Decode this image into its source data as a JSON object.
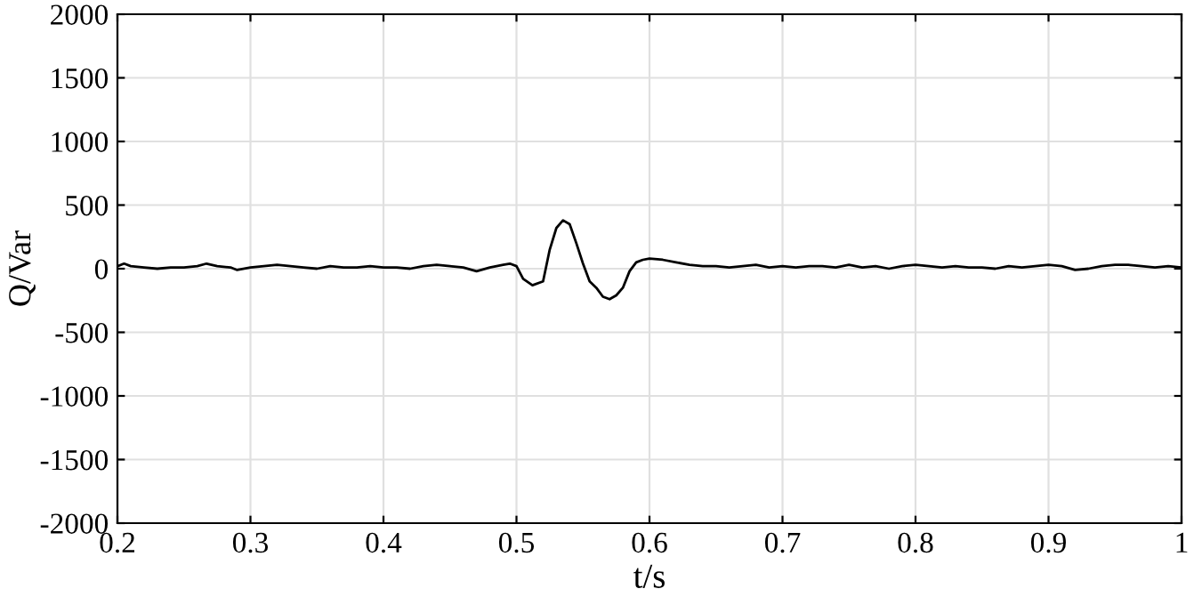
{
  "chart_data": {
    "type": "line",
    "xlabel": "t/s",
    "ylabel": "Q/Var",
    "xlim": [
      0.2,
      1
    ],
    "ylim": [
      -2000,
      2000
    ],
    "xticks": [
      0.2,
      0.3,
      0.4,
      0.5,
      0.6,
      0.7,
      0.8,
      0.9,
      {
        "value": 1,
        "label": "1"
      }
    ],
    "yticks": [
      -2000,
      -1500,
      -1000,
      -500,
      0,
      500,
      1000,
      1500,
      2000
    ],
    "grid": true,
    "series": [
      {
        "color": "#000000",
        "x": [
          0.2,
          0.205,
          0.21,
          0.22,
          0.23,
          0.24,
          0.25,
          0.26,
          0.267,
          0.275,
          0.285,
          0.29,
          0.3,
          0.31,
          0.32,
          0.33,
          0.34,
          0.35,
          0.36,
          0.37,
          0.38,
          0.39,
          0.4,
          0.41,
          0.42,
          0.43,
          0.44,
          0.45,
          0.46,
          0.47,
          0.48,
          0.49,
          0.495,
          0.5,
          0.505,
          0.512,
          0.52,
          0.525,
          0.53,
          0.535,
          0.54,
          0.545,
          0.55,
          0.555,
          0.56,
          0.565,
          0.57,
          0.575,
          0.58,
          0.585,
          0.59,
          0.595,
          0.6,
          0.61,
          0.62,
          0.63,
          0.64,
          0.65,
          0.66,
          0.67,
          0.68,
          0.69,
          0.7,
          0.71,
          0.72,
          0.73,
          0.74,
          0.75,
          0.76,
          0.77,
          0.78,
          0.79,
          0.8,
          0.81,
          0.82,
          0.83,
          0.84,
          0.85,
          0.86,
          0.87,
          0.88,
          0.89,
          0.9,
          0.91,
          0.92,
          0.93,
          0.94,
          0.95,
          0.96,
          0.97,
          0.98,
          0.99,
          1.0
        ],
        "values": [
          20,
          40,
          20,
          10,
          0,
          10,
          10,
          20,
          40,
          20,
          10,
          -10,
          10,
          20,
          30,
          20,
          10,
          0,
          20,
          10,
          10,
          20,
          10,
          10,
          0,
          20,
          30,
          20,
          10,
          -20,
          10,
          30,
          40,
          20,
          -80,
          -130,
          -100,
          150,
          320,
          380,
          350,
          200,
          40,
          -100,
          -150,
          -220,
          -240,
          -210,
          -150,
          -20,
          50,
          70,
          80,
          70,
          50,
          30,
          20,
          20,
          10,
          20,
          30,
          10,
          20,
          10,
          20,
          20,
          10,
          30,
          10,
          20,
          0,
          20,
          30,
          20,
          10,
          20,
          10,
          10,
          0,
          20,
          10,
          20,
          30,
          20,
          -10,
          0,
          20,
          30,
          30,
          20,
          10,
          20,
          10
        ]
      }
    ]
  }
}
